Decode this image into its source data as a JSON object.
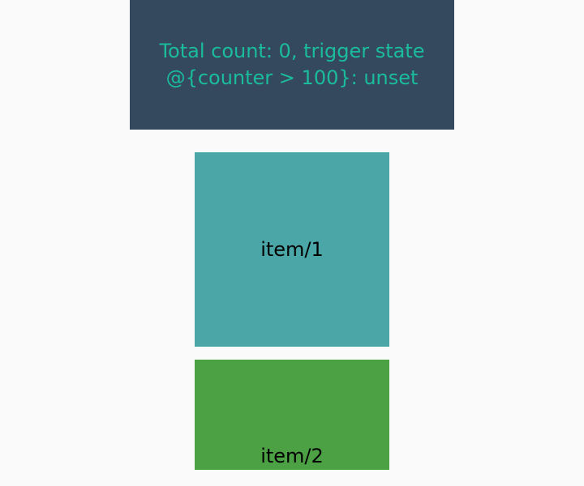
{
  "status": {
    "line1": "Total count: 0, trigger state",
    "line2": "@{counter > 100}: unset"
  },
  "items": [
    {
      "label": "item/1",
      "color": "#4aa6a7"
    },
    {
      "label": "item/2",
      "color": "#4ba143"
    }
  ],
  "colors": {
    "background": "#fafafa",
    "status_panel": "#34495e",
    "status_text": "#1abc9c"
  }
}
